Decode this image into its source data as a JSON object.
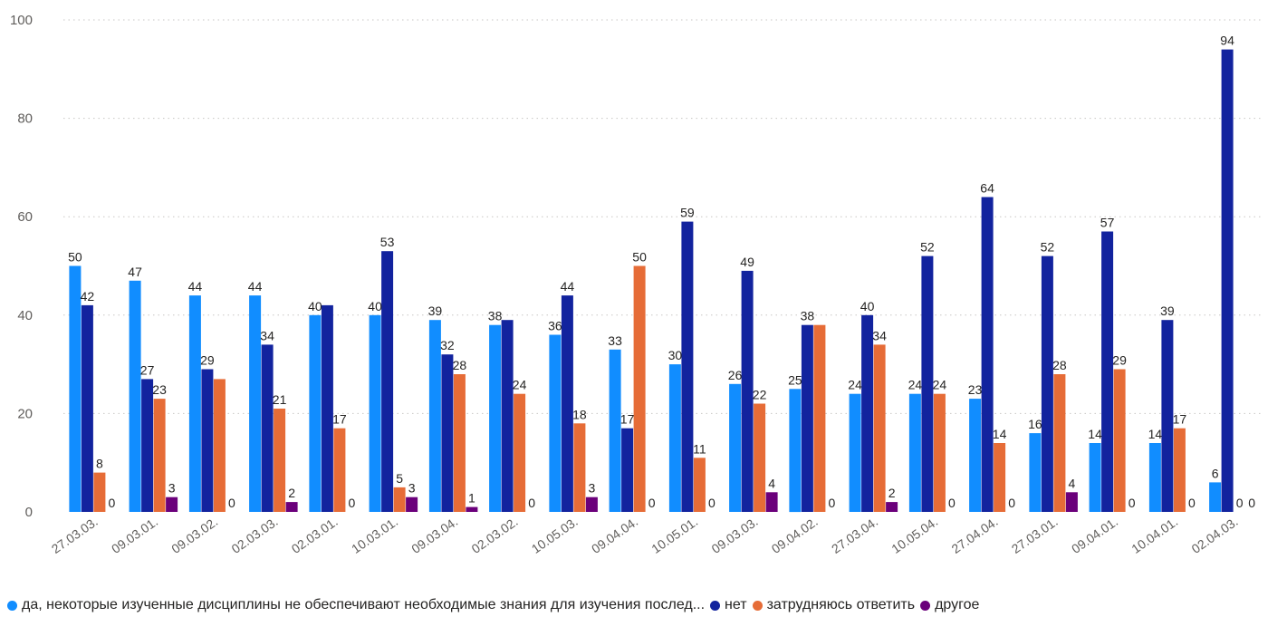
{
  "chart_data": {
    "type": "bar",
    "title": "",
    "xlabel": "",
    "ylabel": "",
    "ylim": [
      0,
      100
    ],
    "yticks": [
      0,
      20,
      40,
      60,
      80,
      100
    ],
    "grid": true,
    "legend_position": "bottom",
    "categories": [
      "27.03.03.",
      "09.03.01.",
      "09.03.02.",
      "02.03.03.",
      "02.03.01.",
      "10.03.01.",
      "09.03.04.",
      "02.03.02.",
      "10.05.03.",
      "09.04.04.",
      "10.05.01.",
      "09.03.03.",
      "09.04.02.",
      "27.03.04.",
      "10.05.04.",
      "27.04.04.",
      "27.03.01.",
      "09.04.01.",
      "10.04.01.",
      "02.04.03."
    ],
    "series": [
      {
        "name": "да, некоторые изученные дисциплины не обеспечивают необходимые знания для изучения послед...",
        "color": "#118dff",
        "values": [
          50,
          47,
          44,
          44,
          40,
          40,
          39,
          38,
          36,
          33,
          30,
          26,
          25,
          24,
          24,
          23,
          16,
          14,
          14,
          6
        ]
      },
      {
        "name": "нет",
        "color": "#12239e",
        "values": [
          42,
          27,
          29,
          34,
          42,
          53,
          32,
          39,
          44,
          17,
          59,
          49,
          38,
          40,
          52,
          64,
          52,
          57,
          39,
          94
        ]
      },
      {
        "name": "затрудняюсь ответить",
        "color": "#e66c37",
        "values": [
          8,
          23,
          27,
          21,
          17,
          5,
          28,
          24,
          18,
          50,
          11,
          22,
          38,
          34,
          24,
          14,
          28,
          29,
          17,
          0
        ]
      },
      {
        "name": "другое",
        "color": "#6b007b",
        "values": [
          0,
          3,
          0,
          2,
          0,
          3,
          1,
          0,
          3,
          0,
          0,
          4,
          0,
          2,
          0,
          0,
          4,
          0,
          0,
          0
        ]
      }
    ],
    "labels": [
      [
        "50",
        "47",
        "44",
        "44",
        "40",
        "40",
        "39",
        "38",
        "36",
        "33",
        "30",
        "26",
        "25",
        "24",
        "24",
        "23",
        "16",
        "14",
        "14",
        "6"
      ],
      [
        "42",
        "27",
        "29",
        "34",
        "",
        "53",
        "32",
        "",
        "44",
        "17",
        "59",
        "49",
        "38",
        "40",
        "52",
        "64",
        "52",
        "57",
        "39",
        "94"
      ],
      [
        "8",
        "23",
        "",
        "21",
        "17",
        "5",
        "28",
        "24",
        "18",
        "50",
        "11",
        "22",
        "",
        "34",
        "24",
        "14",
        "28",
        "29",
        "17",
        "0"
      ],
      [
        "0",
        "3",
        "0",
        "2",
        "0",
        "3",
        "1",
        "0",
        "3",
        "0",
        "0",
        "4",
        "0",
        "2",
        "0",
        "0",
        "4",
        "0",
        "0",
        "0"
      ]
    ]
  }
}
